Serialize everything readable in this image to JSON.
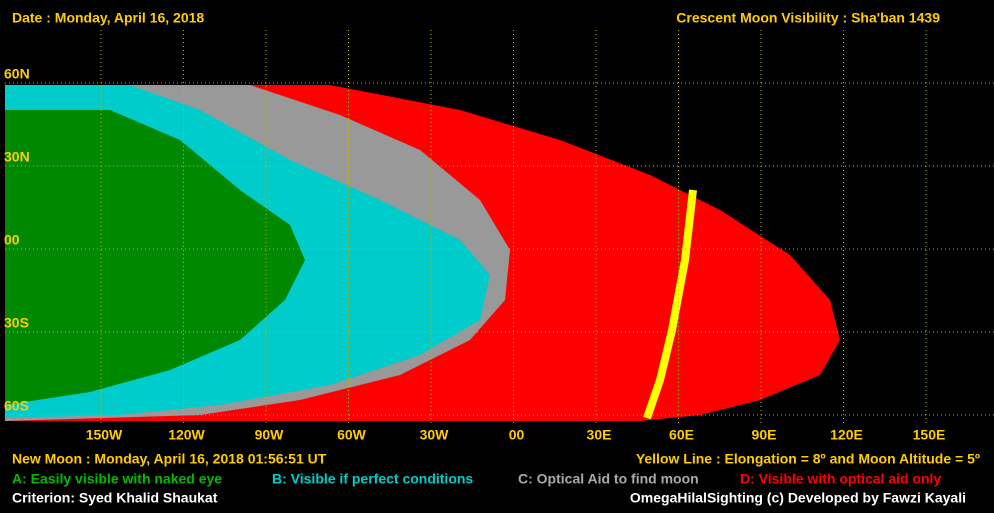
{
  "header": {
    "date": "Date : Monday, April 16, 2018",
    "title": "Crescent Moon Visibility : Sha'ban  1439"
  },
  "map": {
    "latitude_labels": [
      "60N",
      "30N",
      "00",
      "30S",
      "60S"
    ],
    "longitude_labels": [
      "150W",
      "120W",
      "90W",
      "60W",
      "30W",
      "00",
      "30E",
      "60E",
      "90E",
      "120E",
      "150E"
    ]
  },
  "footer": {
    "new_moon": "New Moon : Monday, April 16, 2018  01:56:51  UT",
    "yellow_line": "Yellow Line : Elongation = 8º  and Moon Altitude = 5º",
    "legend": [
      "A: Easily visible with naked eye",
      "B: Visible if perfect conditions",
      "C: Optical Aid to find moon",
      "D: Visible with optical aid only"
    ],
    "criterion": "Criterion: Syed Khalid Shaukat",
    "credit": "OmegaHilalSighting  (c)  Developed by Fawzi Kayali"
  }
}
